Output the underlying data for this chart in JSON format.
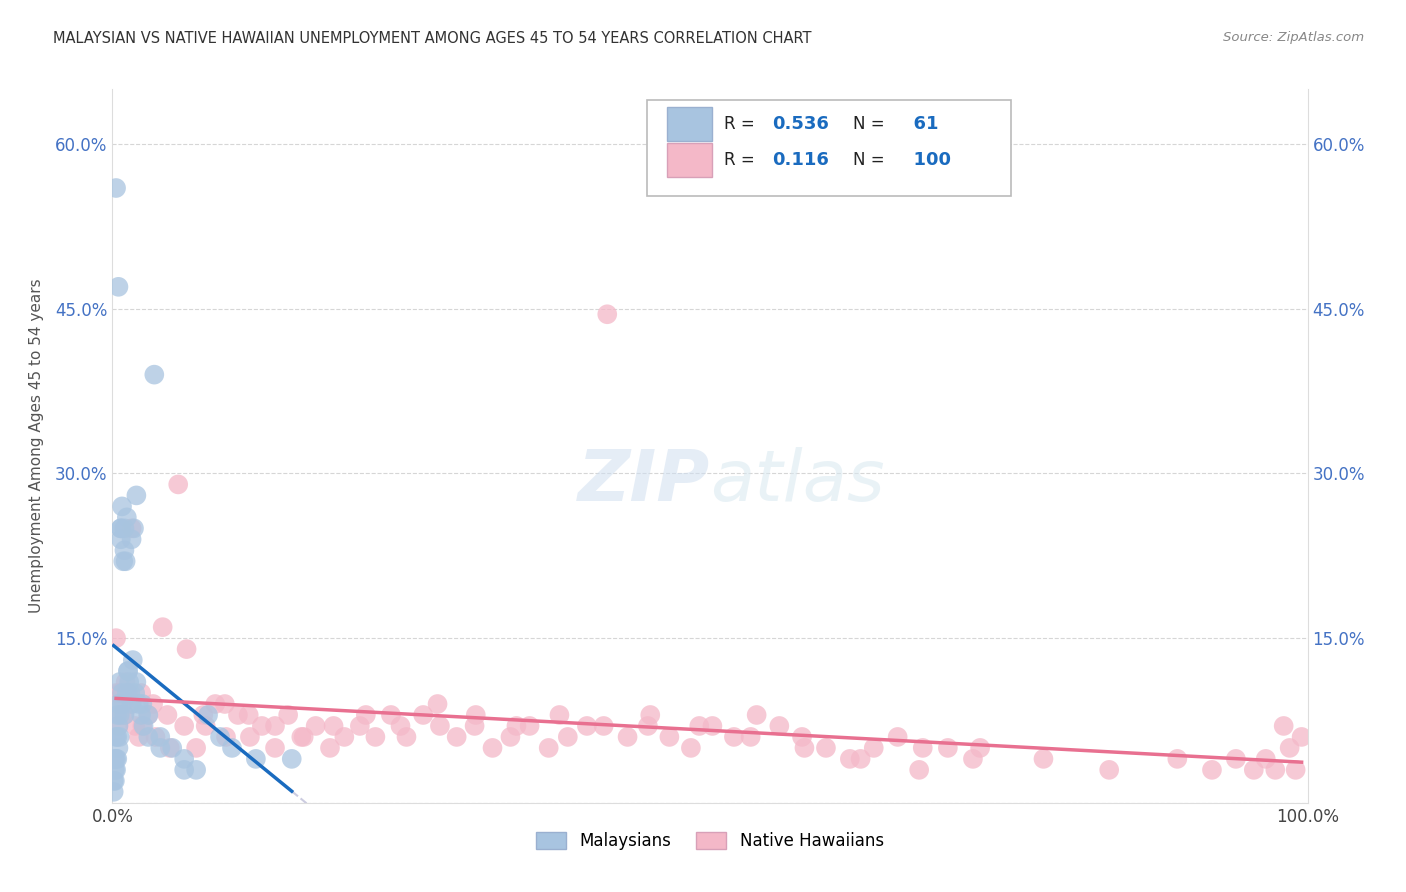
{
  "title": "MALAYSIAN VS NATIVE HAWAIIAN UNEMPLOYMENT AMONG AGES 45 TO 54 YEARS CORRELATION CHART",
  "source": "Source: ZipAtlas.com",
  "ylabel": "Unemployment Among Ages 45 to 54 years",
  "xlim": [
    0,
    1.0
  ],
  "ylim": [
    0,
    0.65
  ],
  "malaysian_R": 0.536,
  "malaysian_N": 61,
  "hawaiian_R": 0.116,
  "hawaiian_N": 100,
  "malaysian_color": "#a8c4e0",
  "hawaiian_color": "#f4b8c8",
  "line_malaysian_color": "#1a6bbf",
  "line_hawaiian_color": "#e87090",
  "legend_R_color": "#1a6bbf",
  "mal_x": [
    0.001,
    0.001,
    0.002,
    0.002,
    0.002,
    0.003,
    0.003,
    0.003,
    0.004,
    0.004,
    0.004,
    0.005,
    0.005,
    0.005,
    0.006,
    0.006,
    0.006,
    0.007,
    0.007,
    0.008,
    0.008,
    0.008,
    0.009,
    0.01,
    0.01,
    0.011,
    0.012,
    0.012,
    0.013,
    0.014,
    0.015,
    0.016,
    0.017,
    0.018,
    0.019,
    0.02,
    0.022,
    0.024,
    0.026,
    0.03,
    0.035,
    0.04,
    0.05,
    0.06,
    0.07,
    0.08,
    0.09,
    0.1,
    0.12,
    0.15,
    0.003,
    0.005,
    0.007,
    0.01,
    0.013,
    0.016,
    0.02,
    0.025,
    0.03,
    0.04,
    0.06
  ],
  "mal_y": [
    0.01,
    0.02,
    0.02,
    0.03,
    0.04,
    0.03,
    0.04,
    0.06,
    0.04,
    0.06,
    0.08,
    0.05,
    0.07,
    0.09,
    0.06,
    0.08,
    0.11,
    0.24,
    0.25,
    0.09,
    0.1,
    0.27,
    0.22,
    0.08,
    0.23,
    0.22,
    0.1,
    0.26,
    0.12,
    0.11,
    0.1,
    0.09,
    0.13,
    0.25,
    0.1,
    0.28,
    0.09,
    0.08,
    0.07,
    0.06,
    0.39,
    0.06,
    0.05,
    0.04,
    0.03,
    0.08,
    0.06,
    0.05,
    0.04,
    0.04,
    0.56,
    0.47,
    0.25,
    0.25,
    0.12,
    0.24,
    0.11,
    0.09,
    0.08,
    0.05,
    0.03
  ],
  "haw_x": [
    0.003,
    0.005,
    0.007,
    0.009,
    0.011,
    0.013,
    0.016,
    0.019,
    0.022,
    0.025,
    0.03,
    0.036,
    0.042,
    0.048,
    0.055,
    0.062,
    0.07,
    0.078,
    0.086,
    0.095,
    0.105,
    0.115,
    0.125,
    0.136,
    0.147,
    0.158,
    0.17,
    0.182,
    0.194,
    0.207,
    0.22,
    0.233,
    0.246,
    0.26,
    0.274,
    0.288,
    0.303,
    0.318,
    0.333,
    0.349,
    0.365,
    0.381,
    0.397,
    0.414,
    0.431,
    0.448,
    0.466,
    0.484,
    0.502,
    0.52,
    0.539,
    0.558,
    0.577,
    0.597,
    0.617,
    0.637,
    0.657,
    0.678,
    0.699,
    0.72,
    0.003,
    0.006,
    0.01,
    0.016,
    0.024,
    0.034,
    0.046,
    0.06,
    0.076,
    0.094,
    0.114,
    0.136,
    0.16,
    0.185,
    0.212,
    0.241,
    0.272,
    0.304,
    0.338,
    0.374,
    0.411,
    0.45,
    0.491,
    0.534,
    0.579,
    0.626,
    0.675,
    0.726,
    0.779,
    0.834,
    0.891,
    0.92,
    0.94,
    0.955,
    0.965,
    0.973,
    0.98,
    0.985,
    0.99,
    0.995
  ],
  "haw_y": [
    0.15,
    0.07,
    0.08,
    0.09,
    0.11,
    0.1,
    0.25,
    0.07,
    0.06,
    0.07,
    0.08,
    0.06,
    0.16,
    0.05,
    0.29,
    0.14,
    0.05,
    0.07,
    0.09,
    0.06,
    0.08,
    0.06,
    0.07,
    0.05,
    0.08,
    0.06,
    0.07,
    0.05,
    0.06,
    0.07,
    0.06,
    0.08,
    0.06,
    0.08,
    0.07,
    0.06,
    0.07,
    0.05,
    0.06,
    0.07,
    0.05,
    0.06,
    0.07,
    0.445,
    0.06,
    0.07,
    0.06,
    0.05,
    0.07,
    0.06,
    0.08,
    0.07,
    0.06,
    0.05,
    0.04,
    0.05,
    0.06,
    0.05,
    0.05,
    0.04,
    0.1,
    0.1,
    0.08,
    0.09,
    0.1,
    0.09,
    0.08,
    0.07,
    0.08,
    0.09,
    0.08,
    0.07,
    0.06,
    0.07,
    0.08,
    0.07,
    0.09,
    0.08,
    0.07,
    0.08,
    0.07,
    0.08,
    0.07,
    0.06,
    0.05,
    0.04,
    0.03,
    0.05,
    0.04,
    0.03,
    0.04,
    0.03,
    0.04,
    0.03,
    0.04,
    0.03,
    0.07,
    0.05,
    0.03,
    0.06
  ]
}
